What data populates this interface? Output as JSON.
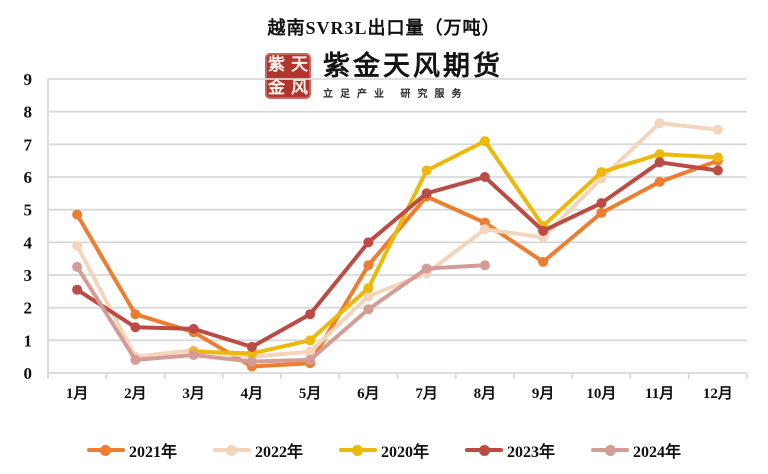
{
  "title": "越南SVR3L出口量（万吨）",
  "logo": {
    "seal_chars": [
      "紫",
      "天",
      "金",
      "风"
    ],
    "seal_color": "#b3342e",
    "company": "紫金天风期货",
    "slogan": "立足产业 研究服务"
  },
  "chart_data": {
    "type": "line",
    "categories": [
      "1月",
      "2月",
      "3月",
      "4月",
      "5月",
      "6月",
      "7月",
      "8月",
      "9月",
      "10月",
      "11月",
      "12月"
    ],
    "series": [
      {
        "name": "2021年",
        "color": "#ED7D31",
        "values": [
          4.85,
          1.8,
          1.25,
          0.2,
          0.3,
          3.3,
          5.4,
          4.6,
          3.4,
          4.9,
          5.85,
          6.5
        ]
      },
      {
        "name": "2022年",
        "color": "#F3D5BC",
        "values": [
          3.9,
          0.5,
          0.7,
          0.5,
          0.65,
          2.35,
          3.05,
          4.4,
          4.15,
          5.95,
          7.65,
          7.45
        ]
      },
      {
        "name": "2020年",
        "color": "#ECB80B",
        "values": [
          null,
          null,
          0.65,
          0.6,
          1.0,
          2.6,
          6.2,
          7.1,
          4.5,
          6.15,
          6.7,
          6.6
        ]
      },
      {
        "name": "2023年",
        "color": "#BC4B43",
        "values": [
          2.55,
          1.4,
          1.35,
          0.8,
          1.8,
          4.0,
          5.5,
          6.0,
          4.35,
          5.2,
          6.45,
          6.2
        ]
      },
      {
        "name": "2024年",
        "color": "#D59C96",
        "values": [
          3.25,
          0.4,
          0.55,
          0.35,
          0.4,
          1.95,
          3.2,
          3.3,
          null,
          null,
          null,
          null
        ]
      }
    ],
    "ylim": [
      0,
      9
    ],
    "ytick_step": 1,
    "grid": true,
    "grid_color": "#D9D9D9",
    "tick_label_color": "#111111",
    "legend_position": "bottom"
  }
}
